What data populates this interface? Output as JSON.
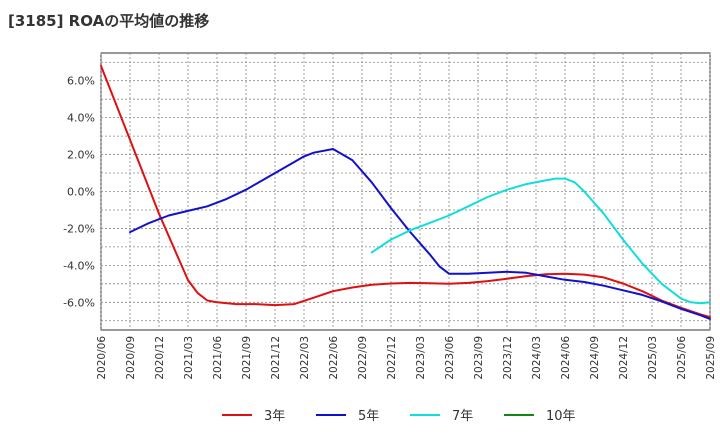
{
  "chart_data": {
    "type": "line",
    "title": "[3185]  ROAの平均値の推移",
    "xlabel": "",
    "ylabel": "",
    "ylim": [
      -7.5,
      7.5
    ],
    "yticks": [
      -6,
      -4,
      -2,
      0,
      2,
      4,
      6
    ],
    "ytick_labels": [
      "-6.0%",
      "-4.0%",
      "-2.0%",
      "0.0%",
      "2.0%",
      "4.0%",
      "6.0%"
    ],
    "x_range_index": [
      0,
      63
    ],
    "x_tick_labels": [
      "2020/06",
      "2020/09",
      "2020/12",
      "2021/03",
      "2021/06",
      "2021/09",
      "2021/12",
      "2022/03",
      "2022/06",
      "2022/09",
      "2022/12",
      "2023/03",
      "2023/06",
      "2023/09",
      "2023/12",
      "2024/03",
      "2024/06",
      "2024/09",
      "2024/12",
      "2025/03",
      "2025/06",
      "2025/09"
    ],
    "grid": true,
    "legend_position": "bottom",
    "series": [
      {
        "name": "3年",
        "color": "#dd1111",
        "x": [
          0,
          3,
          6,
          8,
          9,
          10,
          11,
          12,
          14,
          16,
          18,
          20,
          22,
          24,
          26,
          28,
          30,
          32,
          34,
          36,
          38,
          40,
          42,
          44,
          46,
          48,
          50,
          52,
          54,
          56,
          58,
          60,
          62,
          63
        ],
        "y": [
          6.8,
          2.8,
          -1.2,
          -3.6,
          -4.8,
          -5.5,
          -5.9,
          -6.0,
          -6.1,
          -6.1,
          -6.15,
          -6.1,
          -5.75,
          -5.4,
          -5.2,
          -5.05,
          -4.98,
          -4.95,
          -4.97,
          -5.0,
          -4.95,
          -4.85,
          -4.72,
          -4.58,
          -4.48,
          -4.45,
          -4.5,
          -4.65,
          -4.98,
          -5.4,
          -5.9,
          -6.3,
          -6.65,
          -6.8
        ]
      },
      {
        "name": "5年",
        "color": "#1111cc",
        "x": [
          3,
          5,
          7,
          9,
          11,
          13,
          15,
          17,
          19,
          20,
          21,
          22,
          24,
          26,
          28,
          30,
          32,
          34,
          35,
          36,
          38,
          40,
          42,
          44,
          46,
          48,
          50,
          52,
          54,
          56,
          58,
          60,
          62,
          63
        ],
        "y": [
          -2.2,
          -1.7,
          -1.3,
          -1.05,
          -0.8,
          -0.4,
          0.1,
          0.7,
          1.3,
          1.6,
          1.9,
          2.1,
          2.3,
          1.7,
          0.5,
          -0.9,
          -2.2,
          -3.4,
          -4.05,
          -4.45,
          -4.45,
          -4.4,
          -4.35,
          -4.4,
          -4.6,
          -4.78,
          -4.9,
          -5.1,
          -5.35,
          -5.6,
          -5.95,
          -6.35,
          -6.7,
          -6.9
        ]
      },
      {
        "name": "7年",
        "color": "#11dddd",
        "x": [
          28,
          30,
          32,
          34,
          36,
          38,
          40,
          42,
          44,
          46,
          47,
          48,
          49,
          50,
          52,
          54,
          56,
          58,
          60,
          61,
          62,
          63
        ],
        "y": [
          -3.3,
          -2.6,
          -2.1,
          -1.7,
          -1.3,
          -0.8,
          -0.3,
          0.1,
          0.4,
          0.6,
          0.7,
          0.7,
          0.5,
          0.0,
          -1.2,
          -2.6,
          -3.9,
          -5.0,
          -5.8,
          -6.0,
          -6.05,
          -6.0
        ]
      },
      {
        "name": "10年",
        "color": "#118811",
        "x": [],
        "y": []
      }
    ]
  }
}
